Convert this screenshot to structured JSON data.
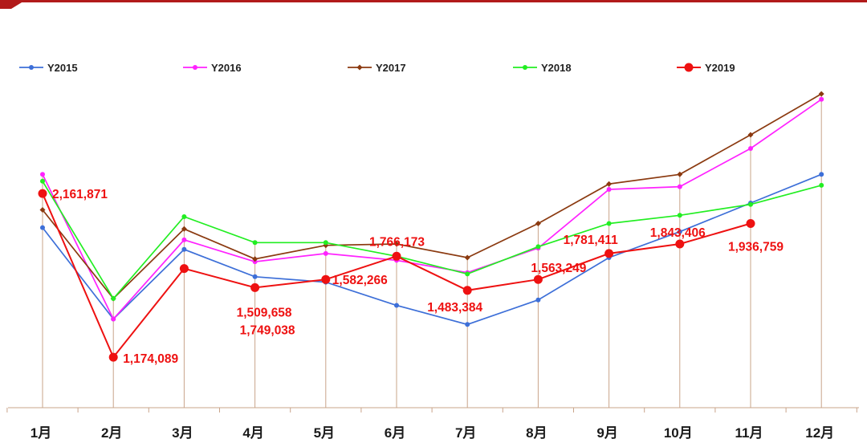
{
  "chart_data": {
    "type": "line",
    "title": "",
    "xlabel": "",
    "ylabel": "",
    "categories": [
      "1月",
      "2月",
      "3月",
      "4月",
      "5月",
      "6月",
      "7月",
      "8月",
      "9月",
      "10月",
      "11月",
      "12月"
    ],
    "ylim": [
      700000,
      3100000
    ],
    "grid": false,
    "legend_position": "top",
    "series": [
      {
        "name": "Y2015",
        "color": "#3d6fd8",
        "marker": "circle",
        "values": [
          2020000,
          1350000,
          1860000,
          1660000,
          1620000,
          1450000,
          1310000,
          1490000,
          1800000,
          1990000,
          2200000,
          2410000
        ]
      },
      {
        "name": "Y2016",
        "color": "#ff22ff",
        "marker": "circle",
        "values": [
          2410000,
          1350000,
          1930000,
          1770000,
          1830000,
          1780000,
          1690000,
          1870000,
          2300000,
          2320000,
          2600000,
          2960000
        ]
      },
      {
        "name": "Y2017",
        "color": "#8b3a10",
        "marker": "diamond",
        "values": [
          2150000,
          1500000,
          2010000,
          1790000,
          1890000,
          1900000,
          1800000,
          2050000,
          2340000,
          2410000,
          2700000,
          3000000
        ]
      },
      {
        "name": "Y2018",
        "color": "#22ee22",
        "marker": "circle",
        "values": [
          2360000,
          1500000,
          2100000,
          1910000,
          1910000,
          1810000,
          1680000,
          1880000,
          2050000,
          2110000,
          2190000,
          2330000
        ]
      },
      {
        "name": "Y2019",
        "color": "#ee1111",
        "marker": "big-circle",
        "values": [
          2270000,
          1070000,
          1720000,
          1580000,
          1640000,
          1810000,
          1560000,
          1640000,
          1830000,
          1900000,
          2050000,
          null
        ]
      }
    ],
    "data_labels": [
      {
        "text": "2,161,871",
        "index": 0
      },
      {
        "text": "1,174,089",
        "index": 1
      },
      {
        "text": "1,749,038",
        "index": 3
      },
      {
        "text": "1,509,658",
        "index": 3
      },
      {
        "text": "1,582,266",
        "index": 4
      },
      {
        "text": "1,766,173",
        "index": 5
      },
      {
        "text": "1,483,384",
        "index": 6
      },
      {
        "text": "1,563,249",
        "index": 7
      },
      {
        "text": "1,781,411",
        "index": 8
      },
      {
        "text": "1,843,406",
        "index": 9
      },
      {
        "text": "1,936,759",
        "index": 10
      }
    ]
  }
}
